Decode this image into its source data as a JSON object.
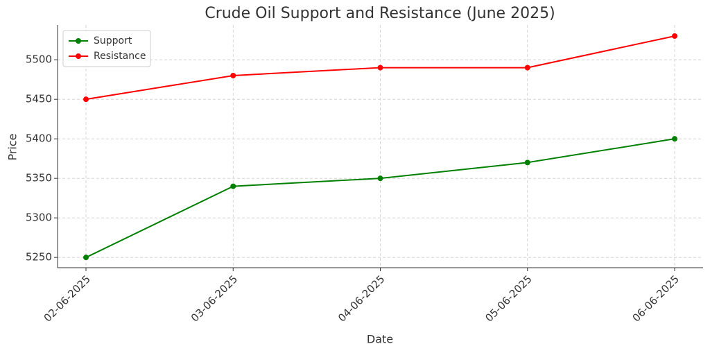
{
  "chart_data": {
    "type": "line",
    "title": "Crude Oil Support and Resistance (June 2025)",
    "x_label": "Date",
    "y_label": "Price",
    "categories": [
      "02-06-2025",
      "03-06-2025",
      "04-06-2025",
      "05-06-2025",
      "06-06-2025"
    ],
    "series": [
      {
        "name": "Support",
        "color": "#008000",
        "values": [
          5250,
          5340,
          5350,
          5370,
          5400
        ]
      },
      {
        "name": "Resistance",
        "color": "#ff0000",
        "values": [
          5450,
          5480,
          5490,
          5490,
          5530
        ]
      }
    ],
    "ylim": [
      5237,
      5544
    ],
    "yticks": [
      5250,
      5300,
      5350,
      5400,
      5450,
      5500
    ],
    "grid": true,
    "legend": "upper left"
  }
}
